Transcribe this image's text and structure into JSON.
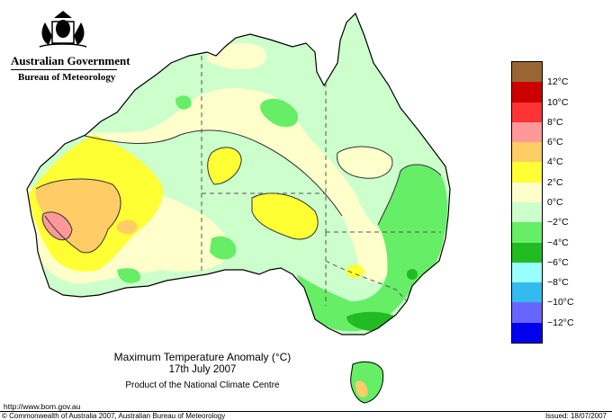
{
  "header": {
    "government": "Australian Government",
    "bureau": "Bureau of Meteorology"
  },
  "legend": {
    "items": [
      {
        "label": "12°C",
        "color": "#996633"
      },
      {
        "label": "10°C",
        "color": "#cc0000"
      },
      {
        "label": "8°C",
        "color": "#ff3333"
      },
      {
        "label": "6°C",
        "color": "#ff9999"
      },
      {
        "label": "4°C",
        "color": "#ffcc66"
      },
      {
        "label": "2°C",
        "color": "#ffff33"
      },
      {
        "label": "0°C",
        "color": "#ffffcc"
      },
      {
        "label": "−2°C",
        "color": "#ccffcc"
      },
      {
        "label": "−4°C",
        "color": "#66ee66"
      },
      {
        "label": "−6°C",
        "color": "#22bb22"
      },
      {
        "label": "−8°C",
        "color": "#99ffff"
      },
      {
        "label": "−10°C",
        "color": "#33bbee"
      },
      {
        "label": "−12°C",
        "color": "#6666ff"
      },
      {
        "label": "",
        "color": "#0000ee"
      }
    ]
  },
  "map": {
    "title": "Maximum Temperature Anomaly (°C)",
    "date": "17th July 2007",
    "credit": "Product of the National Climate Centre"
  },
  "footer": {
    "url": "http://www.bom.gov.au",
    "copyright": "© Commonwealth of Australia 2007, Australian Bureau of Meteorology",
    "issued": "Issued: 18/07/2007"
  }
}
